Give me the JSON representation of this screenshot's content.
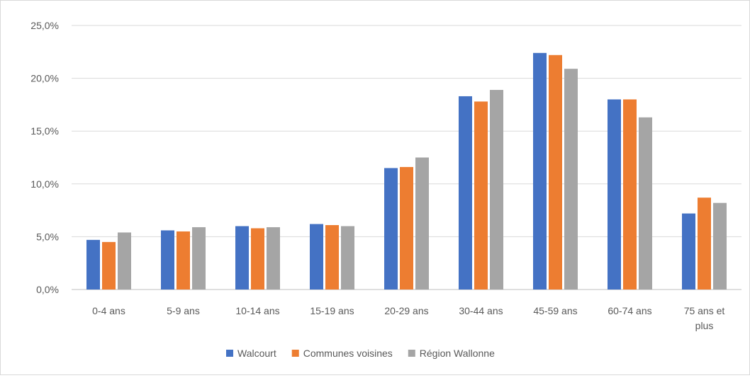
{
  "chart_data": {
    "type": "bar",
    "categories": [
      "0-4 ans",
      "5-9 ans",
      "10-14 ans",
      "15-19 ans",
      "20-29 ans",
      "30-44 ans",
      "45-59 ans",
      "60-74 ans",
      "75 ans et plus"
    ],
    "category_lines": [
      [
        "0-4 ans"
      ],
      [
        "5-9 ans"
      ],
      [
        "10-14 ans"
      ],
      [
        "15-19 ans"
      ],
      [
        "20-29 ans"
      ],
      [
        "30-44 ans"
      ],
      [
        "45-59 ans"
      ],
      [
        "60-74 ans"
      ],
      [
        "75 ans et",
        "plus"
      ]
    ],
    "series": [
      {
        "name": "Walcourt",
        "color": "#4472c4",
        "values": [
          4.7,
          5.6,
          6.0,
          6.2,
          11.5,
          18.3,
          22.4,
          18.0,
          7.2
        ]
      },
      {
        "name": "Communes voisines",
        "color": "#ed7d31",
        "values": [
          4.5,
          5.5,
          5.8,
          6.1,
          11.6,
          17.8,
          22.2,
          18.0,
          8.7
        ]
      },
      {
        "name": "Région Wallonne",
        "color": "#a5a5a5",
        "values": [
          5.4,
          5.9,
          5.9,
          6.0,
          12.5,
          18.9,
          20.9,
          16.3,
          8.2
        ]
      }
    ],
    "ylim": [
      0,
      25
    ],
    "yticks": [
      0,
      5,
      10,
      15,
      20,
      25
    ],
    "ytick_labels": [
      "0,0%",
      "5,0%",
      "10,0%",
      "15,0%",
      "20,0%",
      "25,0%"
    ],
    "grid": true,
    "legend_position": "bottom",
    "title": "",
    "xlabel": "",
    "ylabel": ""
  }
}
